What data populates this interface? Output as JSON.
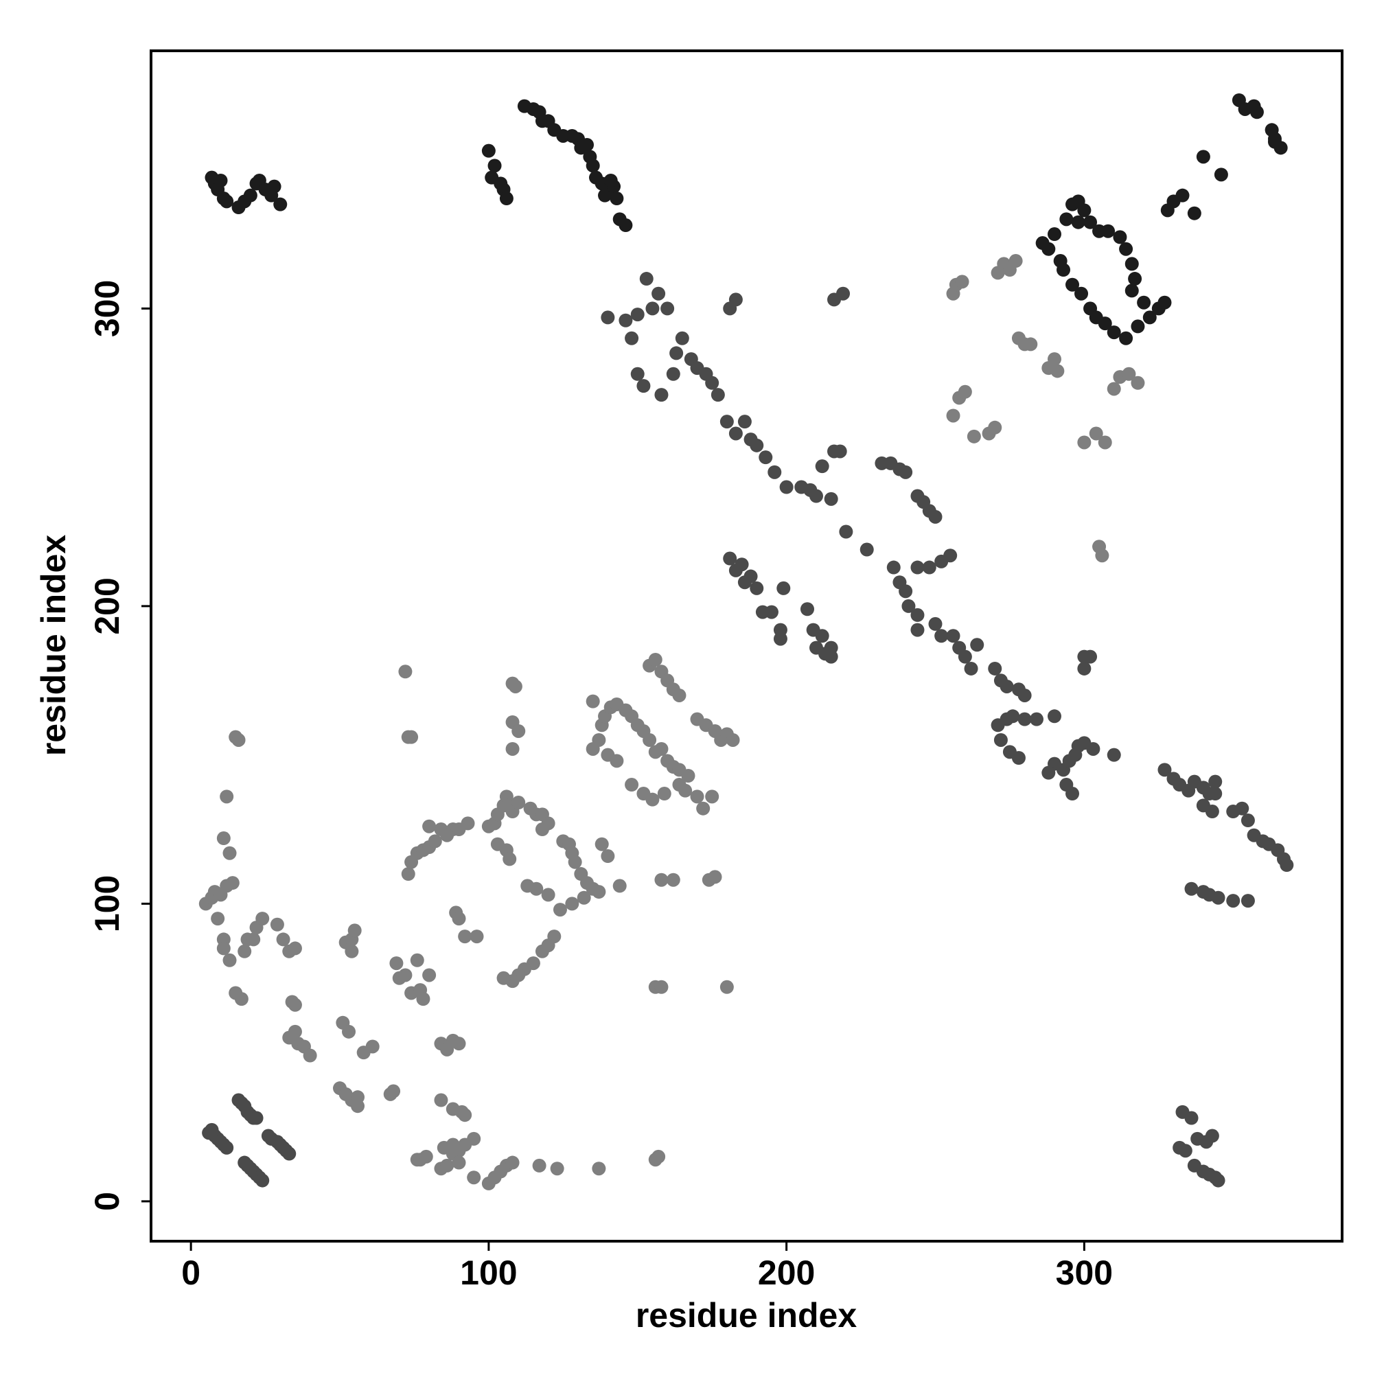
{
  "chart_data": {
    "type": "scatter",
    "xlabel": "residue index",
    "ylabel": "residue index",
    "xlim": [
      -13.4,
      386.6
    ],
    "ylim": [
      -13.4,
      386.6
    ],
    "xticks": [
      0,
      100,
      200,
      300
    ],
    "yticks": [
      0,
      100,
      200,
      300
    ],
    "grid": false,
    "series": [
      {
        "color": "#1c1c1c",
        "x": [
          7,
          8,
          9,
          10,
          11,
          12,
          16,
          18,
          20,
          22,
          23,
          25,
          27,
          28,
          30,
          100,
          101,
          102,
          104,
          105,
          106,
          112,
          115,
          117,
          118,
          120,
          122,
          125,
          128,
          130,
          131,
          133,
          134,
          135,
          136,
          138,
          139,
          140,
          142,
          143,
          144,
          146,
          141,
          352,
          354,
          357,
          358,
          363,
          364,
          366,
          364,
          340,
          346,
          330,
          333,
          337,
          328,
          296,
          298,
          294,
          290,
          286,
          288,
          292,
          293,
          296,
          299,
          302,
          304,
          307,
          310,
          314,
          318,
          322,
          325,
          327,
          320,
          316,
          317,
          316,
          314,
          312,
          308,
          305,
          302,
          300,
          298
        ],
        "values": [
          344,
          342,
          340,
          343,
          337,
          336,
          334,
          336,
          338,
          342,
          343,
          340,
          338,
          341,
          335,
          353,
          344,
          348,
          342,
          340,
          337,
          368,
          367,
          366,
          363,
          363,
          360,
          358,
          358,
          357,
          354,
          355,
          351,
          348,
          344,
          342,
          338,
          340,
          341,
          337,
          330,
          328,
          343,
          370,
          367,
          368,
          366,
          360,
          357,
          354,
          356,
          351,
          345,
          336,
          338,
          332,
          333,
          335,
          336,
          330,
          325,
          322,
          320,
          316,
          313,
          308,
          305,
          300,
          297,
          295,
          292,
          290,
          294,
          297,
          300,
          302,
          302,
          306,
          310,
          315,
          320,
          324,
          326,
          326,
          329,
          333,
          329
        ]
      },
      {
        "color": "#4a4a4a",
        "x": [
          150,
          146,
          140,
          155,
          160,
          153,
          157,
          148,
          150,
          152,
          158,
          162,
          163,
          165,
          168,
          170,
          173,
          175,
          177,
          180,
          183,
          186,
          188,
          190,
          193,
          196,
          200,
          205,
          208,
          210,
          215,
          212,
          216,
          218,
          220,
          227,
          232,
          235,
          238,
          240,
          244,
          246,
          248,
          250,
          236,
          238,
          240,
          241,
          244,
          248,
          252,
          255,
          244,
          244,
          250,
          252,
          256,
          258,
          260,
          262,
          264,
          270,
          272,
          274,
          278,
          280,
          271,
          274,
          276,
          280,
          284,
          290,
          272,
          275,
          278,
          290,
          293,
          295,
          297,
          300,
          298,
          303,
          310,
          294,
          296,
          288,
          300,
          302,
          300,
          181,
          183,
          216,
          219,
          185,
          186,
          188,
          190,
          192,
          195,
          199,
          198,
          198,
          207,
          209,
          210,
          212,
          213,
          215,
          215,
          181,
          183,
          327,
          330,
          332,
          335,
          337,
          340,
          342,
          344,
          344,
          340,
          343,
          350,
          353,
          355,
          357,
          360,
          362,
          365,
          367,
          368,
          336,
          340,
          342,
          345,
          350,
          355,
          333,
          336,
          338,
          341,
          343,
          334,
          332,
          337,
          340,
          342,
          344,
          345,
          6,
          7,
          8,
          9,
          10,
          11,
          12,
          16,
          17,
          18,
          19,
          20,
          21,
          22,
          18,
          19,
          20,
          21,
          22,
          23,
          24,
          26,
          27,
          29,
          30,
          31,
          32,
          33
        ],
        "values": [
          298,
          296,
          297,
          300,
          300,
          310,
          305,
          290,
          278,
          274,
          271,
          278,
          285,
          290,
          283,
          280,
          278,
          275,
          271,
          262,
          258,
          262,
          256,
          254,
          250,
          245,
          240,
          240,
          239,
          237,
          236,
          247,
          252,
          252,
          225,
          219,
          248,
          248,
          246,
          245,
          237,
          235,
          232,
          230,
          213,
          208,
          205,
          200,
          213,
          213,
          215,
          217,
          197,
          192,
          194,
          190,
          190,
          186,
          183,
          179,
          187,
          179,
          175,
          173,
          172,
          170,
          160,
          162,
          163,
          162,
          162,
          163,
          155,
          151,
          149,
          147,
          145,
          148,
          150,
          154,
          153,
          152,
          150,
          140,
          137,
          144,
          183,
          183,
          179,
          300,
          303,
          303,
          305,
          214,
          208,
          210,
          206,
          198,
          198,
          206,
          192,
          189,
          199,
          192,
          186,
          190,
          184,
          186,
          183,
          216,
          212,
          145,
          142,
          140,
          138,
          141,
          139,
          137,
          141,
          137,
          133,
          131,
          131,
          132,
          128,
          123,
          121,
          120,
          118,
          115,
          113,
          105,
          104,
          103,
          102,
          101,
          101,
          30,
          28,
          21,
          20,
          22,
          17,
          18,
          12,
          10,
          9,
          8,
          7,
          23,
          24,
          22,
          21,
          20,
          19,
          18,
          34,
          33,
          32,
          30,
          29,
          28,
          28,
          13,
          12,
          11,
          10,
          9,
          8,
          7,
          22,
          21,
          20,
          19,
          18,
          17,
          16
        ]
      },
      {
        "color": "#7f7f7f",
        "x": [
          256,
          257,
          259,
          271,
          273,
          275,
          277,
          278,
          280,
          282,
          288,
          290,
          291,
          258,
          260,
          256,
          263,
          268,
          270,
          300,
          304,
          307,
          305,
          306,
          310,
          312,
          315,
          318,
          100,
          102,
          103,
          105,
          106,
          107,
          108,
          110,
          103,
          106,
          107,
          114,
          116,
          118,
          120,
          118,
          125,
          127,
          128,
          129,
          131,
          133,
          135,
          137,
          132,
          128,
          124,
          120,
          116,
          113,
          122,
          120,
          118,
          115,
          112,
          110,
          108,
          105,
          73,
          74,
          76,
          78,
          80,
          82,
          84,
          88,
          86,
          135,
          137,
          138,
          139,
          141,
          143,
          135,
          140,
          143,
          146,
          148,
          150,
          152,
          154,
          148,
          152,
          155,
          154,
          156,
          158,
          160,
          162,
          164,
          156,
          158,
          160,
          162,
          164,
          167,
          166,
          170,
          172,
          170,
          173,
          176,
          178,
          180,
          182,
          159,
          164,
          175,
          158,
          162,
          174,
          176,
          108,
          109,
          108,
          110,
          108,
          5,
          7,
          8,
          10,
          12,
          14,
          9,
          11,
          11,
          13,
          11,
          13,
          12,
          15,
          16,
          15,
          17,
          18,
          19,
          21,
          22,
          24,
          29,
          31,
          33,
          35,
          34,
          35,
          33,
          35,
          36,
          38,
          40,
          50,
          52,
          54,
          56,
          56,
          51,
          53,
          52,
          54,
          55,
          54,
          58,
          61,
          67,
          68,
          69,
          70,
          72,
          74,
          77,
          76,
          78,
          80,
          72,
          73,
          74,
          84,
          86,
          88,
          90,
          84,
          88,
          91,
          92,
          85,
          88,
          90,
          92,
          95,
          84,
          86,
          90,
          88,
          95,
          100,
          102,
          104,
          106,
          108,
          117,
          123,
          137,
          156,
          157,
          89,
          92,
          96,
          90,
          156,
          158,
          180,
          76,
          77,
          79,
          90,
          80,
          93,
          138,
          140,
          144
        ],
        "values": [
          305,
          308,
          309,
          312,
          315,
          313,
          316,
          290,
          288,
          288,
          280,
          283,
          279,
          270,
          272,
          264,
          257,
          258,
          260,
          255,
          258,
          255,
          220,
          217,
          273,
          277,
          278,
          275,
          126,
          127,
          130,
          133,
          136,
          133,
          131,
          134,
          120,
          118,
          115,
          132,
          130,
          130,
          127,
          125,
          121,
          120,
          117,
          114,
          110,
          107,
          105,
          104,
          102,
          100,
          98,
          103,
          105,
          106,
          89,
          86,
          84,
          80,
          78,
          76,
          74,
          75,
          110,
          114,
          117,
          118,
          119,
          121,
          125,
          125,
          123,
          152,
          155,
          160,
          163,
          166,
          167,
          168,
          150,
          148,
          165,
          163,
          160,
          158,
          155,
          140,
          137,
          135,
          180,
          182,
          178,
          175,
          172,
          170,
          151,
          152,
          148,
          146,
          145,
          143,
          138,
          136,
          132,
          162,
          160,
          158,
          155,
          157,
          155,
          137,
          140,
          136,
          108,
          108,
          108,
          109,
          174,
          173,
          161,
          158,
          152,
          100,
          102,
          104,
          103,
          106,
          107,
          95,
          88,
          85,
          81,
          122,
          117,
          136,
          156,
          155,
          70,
          68,
          84,
          88,
          88,
          92,
          95,
          93,
          88,
          84,
          85,
          67,
          66,
          55,
          57,
          53,
          52,
          49,
          38,
          36,
          34,
          35,
          32,
          60,
          57,
          87,
          88,
          91,
          84,
          50,
          52,
          36,
          37,
          80,
          75,
          76,
          70,
          71,
          81,
          68,
          76,
          178,
          156,
          156,
          53,
          51,
          54,
          53,
          34,
          31,
          30,
          29,
          18,
          16,
          17,
          19,
          21,
          11,
          12,
          13,
          19,
          8,
          6,
          8,
          10,
          12,
          13,
          12,
          11,
          11,
          14,
          15,
          97,
          89,
          89,
          95,
          72,
          72,
          72,
          14,
          14,
          15,
          125,
          126,
          127,
          120,
          116,
          106
        ]
      }
    ]
  }
}
